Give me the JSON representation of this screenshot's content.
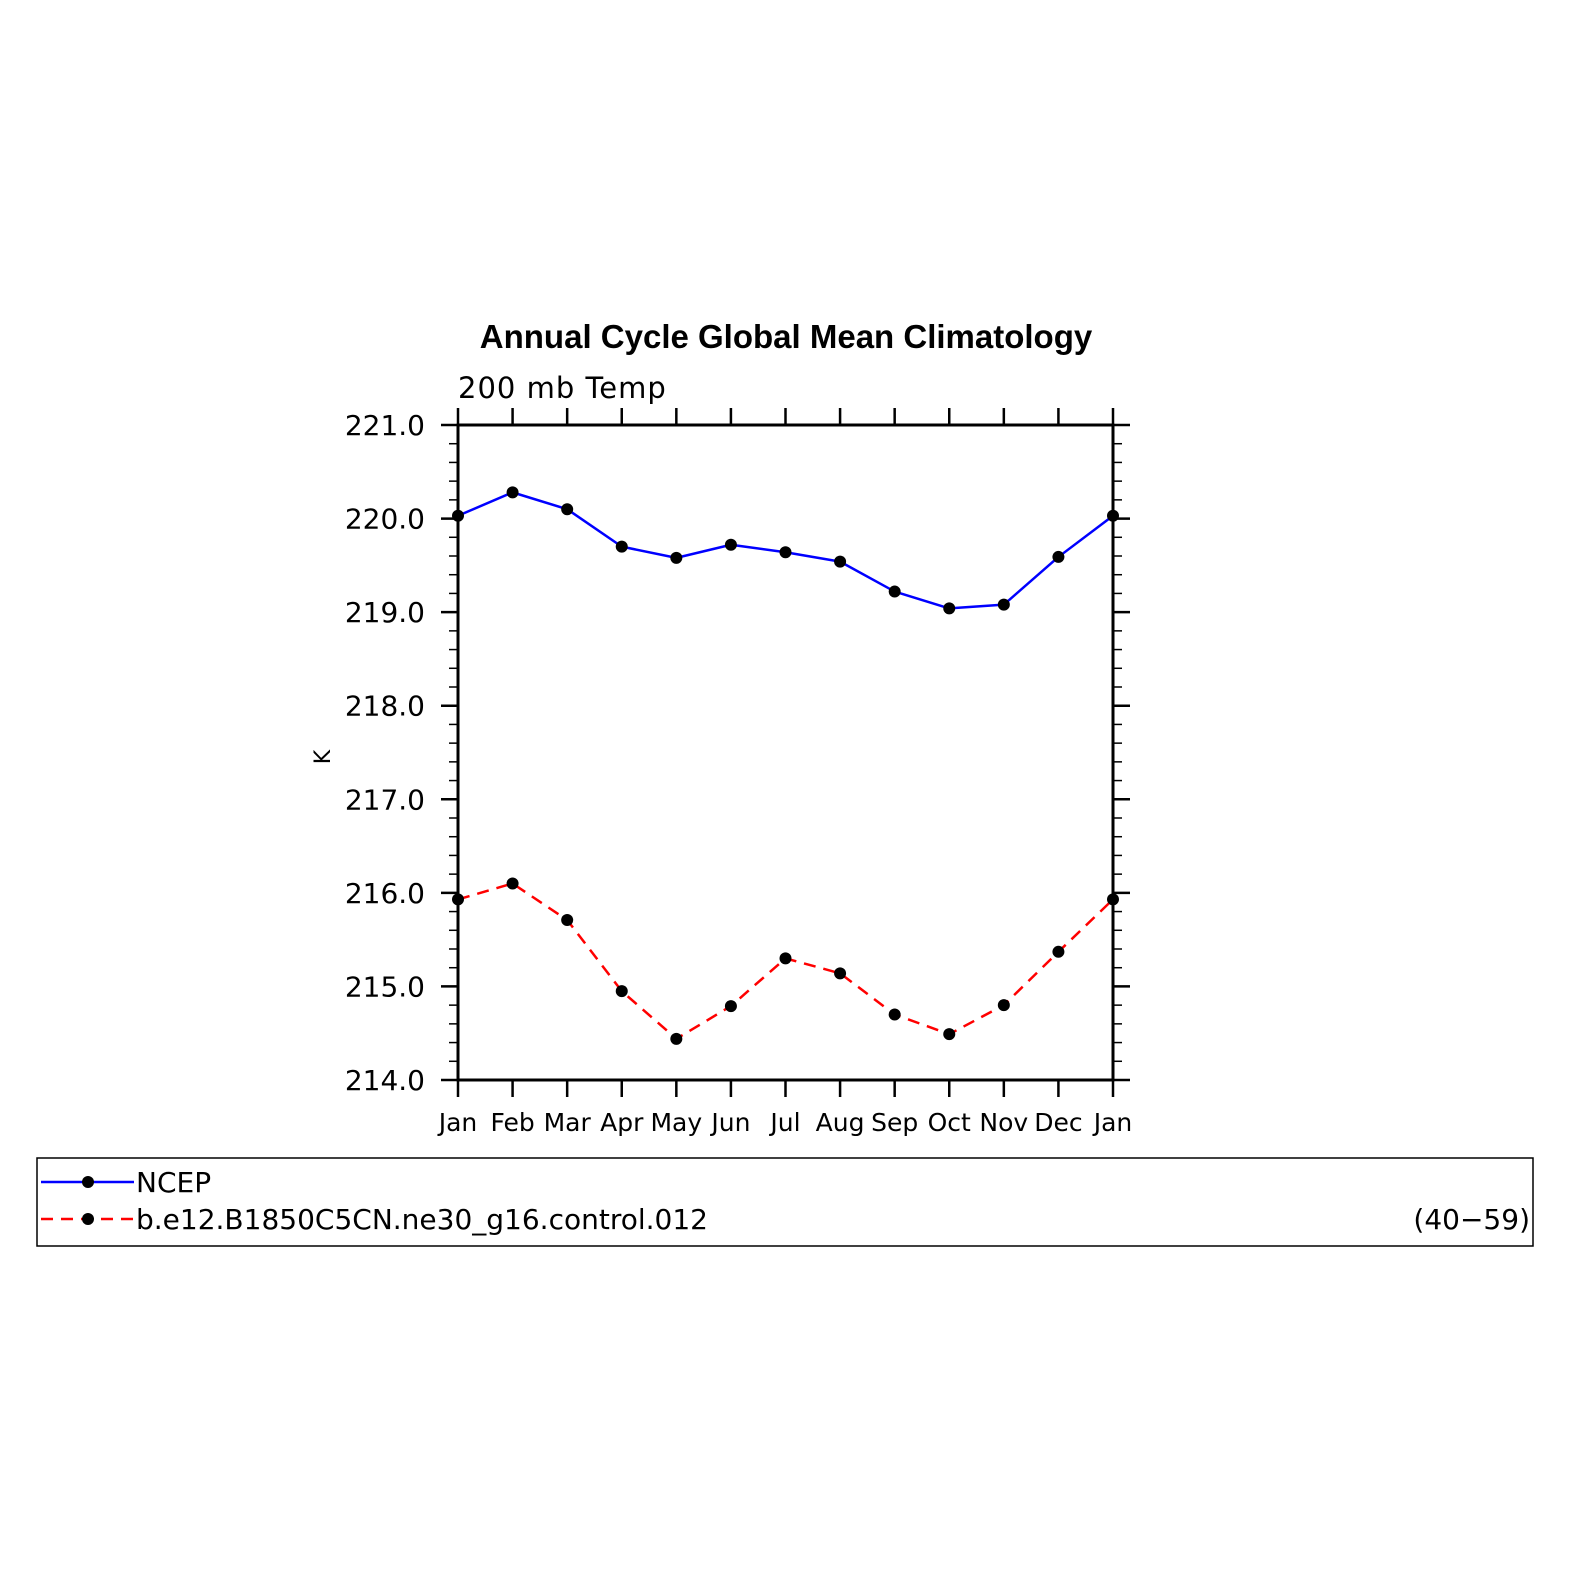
{
  "chart_data": {
    "type": "line",
    "title": "Annual Cycle Global Mean Climatology",
    "subtitle": "200 mb Temp",
    "xlabel": "",
    "ylabel": "K",
    "categories": [
      "Jan",
      "Feb",
      "Mar",
      "Apr",
      "May",
      "Jun",
      "Jul",
      "Aug",
      "Sep",
      "Oct",
      "Nov",
      "Dec",
      "Jan"
    ],
    "ylim": [
      214.0,
      221.0
    ],
    "yticks": [
      "214.0",
      "215.0",
      "216.0",
      "217.0",
      "218.0",
      "219.0",
      "220.0",
      "221.0"
    ],
    "series": [
      {
        "name": "NCEP",
        "color": "#0000ff",
        "dash": "solid",
        "values": [
          220.03,
          220.28,
          220.1,
          219.7,
          219.58,
          219.72,
          219.64,
          219.54,
          219.22,
          219.04,
          219.08,
          219.59,
          220.03
        ]
      },
      {
        "name": "b.e12.B1850C5CN.ne30_g16.control.012",
        "color": "#ff0000",
        "dash": "dashed",
        "values": [
          215.93,
          216.1,
          215.71,
          214.95,
          214.44,
          214.79,
          215.3,
          215.14,
          214.7,
          214.49,
          214.8,
          215.37,
          215.93
        ]
      }
    ],
    "legend": {
      "placement": "bottom",
      "years": "(40−59)"
    },
    "grid": false
  }
}
